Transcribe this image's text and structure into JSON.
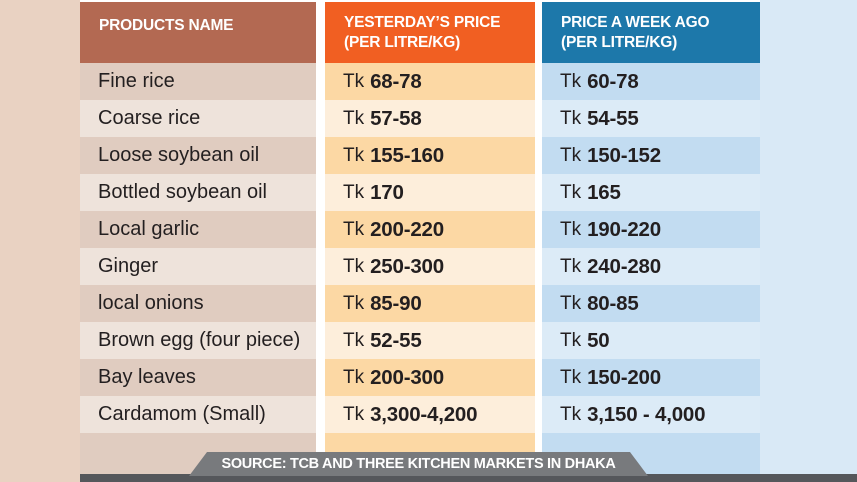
{
  "table": {
    "currency": "Tk",
    "headers": {
      "products": "PRODUCTS NAME",
      "yesterday_line1": "YESTERDAY’S PRICE",
      "yesterday_line2": "(PER LITRE/KG)",
      "week_line1": "PRICE A WEEK AGO",
      "week_line2": "(PER LITRE/KG)"
    },
    "rows": [
      {
        "product": "Fine rice",
        "yesterday": "68-78",
        "week_ago": "60-78"
      },
      {
        "product": "Coarse rice",
        "yesterday": "57-58",
        "week_ago": "54-55"
      },
      {
        "product": "Loose soybean oil",
        "yesterday": "155-160",
        "week_ago": "150-152"
      },
      {
        "product": "Bottled soybean oil",
        "yesterday": "170",
        "week_ago": "165"
      },
      {
        "product": "Local garlic",
        "yesterday": "200-220",
        "week_ago": "190-220"
      },
      {
        "product": "Ginger",
        "yesterday": "250-300",
        "week_ago": "240-280"
      },
      {
        "product": "local onions",
        "yesterday": "85-90",
        "week_ago": "80-85"
      },
      {
        "product": "Brown egg (four piece)",
        "yesterday": "52-55",
        "week_ago": "50"
      },
      {
        "product": "Bay leaves",
        "yesterday": "200-300",
        "week_ago": "150-200"
      },
      {
        "product": "Cardamom (Small)",
        "yesterday": "3,300-4,200",
        "week_ago": "3,150 - 4,000"
      }
    ]
  },
  "footer": {
    "source": "SOURCE: TCB AND THREE KITCHEN MARKETS IN DHAKA"
  },
  "colors": {
    "products_header_bg": "#b36952",
    "yesterday_header_bg": "#f15f22",
    "week_header_bg": "#1d78aa",
    "products_row_dark": "#e0ccc0",
    "products_row_light": "#eee3db",
    "yesterday_row_dark": "#fcd8a4",
    "yesterday_row_light": "#fdeedb",
    "week_row_dark": "#c2dcf1",
    "week_row_light": "#dcebf7",
    "left_margin_bg": "#e9d2c2",
    "right_margin_bg": "#d9e9f6",
    "banner_bg": "#787a7d",
    "bottom_band_bg": "#55575b",
    "header_text": "#ffffff",
    "body_text": "#231f20"
  },
  "chart_data": {
    "type": "table",
    "title": "",
    "columns": [
      "PRODUCTS NAME",
      "YESTERDAY’S PRICE (PER LITRE/KG)",
      "PRICE A WEEK AGO (PER LITRE/KG)"
    ],
    "rows": [
      [
        "Fine rice",
        "Tk 68-78",
        "Tk 60-78"
      ],
      [
        "Coarse rice",
        "Tk 57-58",
        "Tk 54-55"
      ],
      [
        "Loose soybean oil",
        "Tk 155-160",
        "Tk 150-152"
      ],
      [
        "Bottled soybean oil",
        "Tk 170",
        "Tk 165"
      ],
      [
        "Local garlic",
        "Tk 200-220",
        "Tk 190-220"
      ],
      [
        "Ginger",
        "Tk 250-300",
        "Tk 240-280"
      ],
      [
        "local onions",
        "Tk 85-90",
        "Tk 80-85"
      ],
      [
        "Brown egg (four piece)",
        "Tk 52-55",
        "Tk 50"
      ],
      [
        "Bay leaves",
        "Tk 200-300",
        "Tk 150-200"
      ],
      [
        "Cardamom (Small)",
        "Tk 3,300-4,200",
        "Tk 3,150 - 4,000"
      ]
    ],
    "source": "SOURCE: TCB AND THREE KITCHEN MARKETS IN DHAKA"
  }
}
